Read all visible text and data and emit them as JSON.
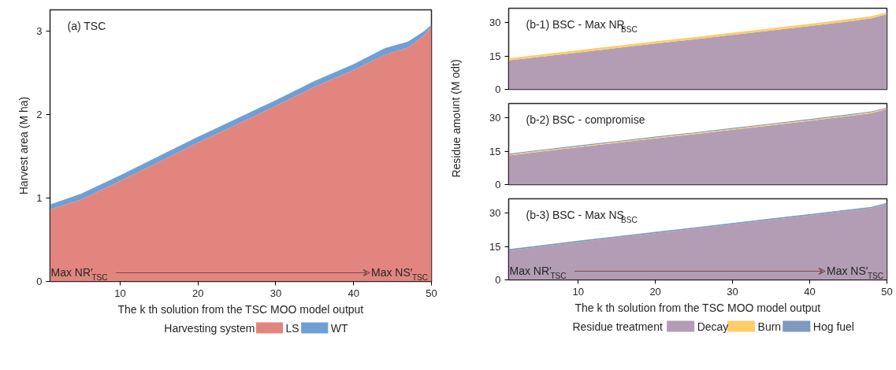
{
  "chart_data": [
    {
      "type": "area",
      "stacked": true,
      "title": "(a) TSC",
      "xlabel": "The k th solution from the TSC MOO model output",
      "ylabel": "Harvest area (M ha)",
      "legend_title": "Harvesting system",
      "legend": "bottom",
      "x": [
        1,
        5,
        10,
        15,
        20,
        25,
        30,
        35,
        40,
        44,
        47,
        49,
        50
      ],
      "series": [
        {
          "name": "LS",
          "color": "#e3857f",
          "values": [
            0.86,
            0.98,
            1.2,
            1.43,
            1.66,
            1.88,
            2.1,
            2.33,
            2.53,
            2.71,
            2.8,
            2.94,
            3.05
          ]
        },
        {
          "name": "WT",
          "color": "#6f9fd3",
          "values": [
            0.06,
            0.07,
            0.07,
            0.07,
            0.07,
            0.07,
            0.07,
            0.07,
            0.07,
            0.08,
            0.07,
            0.05,
            0.02
          ]
        }
      ],
      "xlim": [
        1,
        50
      ],
      "xticks": [
        10,
        20,
        30,
        40,
        50
      ],
      "ylim": [
        0,
        3.25
      ],
      "yticks": [
        0,
        1,
        2,
        3
      ],
      "annotations": [
        "Max NR′$_{TSC}$",
        "Max NS′$_{TSC}$"
      ]
    },
    {
      "type": "area",
      "stacked": true,
      "title": "(b-1) BSC - Max NR$_{BSC}$",
      "tick_labels": "y",
      "x": [
        1,
        5,
        10,
        15,
        20,
        25,
        30,
        35,
        40,
        45,
        48,
        50
      ],
      "series": [
        {
          "color": "#b39db5",
          "values": [
            13.0,
            14.6,
            16.6,
            18.6,
            20.6,
            22.5,
            24.5,
            26.5,
            28.5,
            30.6,
            32.0,
            33.8
          ]
        },
        {
          "color": "#fdcd68",
          "values": [
            1.0,
            1.0,
            1.0,
            1.0,
            1.0,
            1.0,
            1.0,
            1.0,
            1.0,
            1.0,
            1.0,
            0.8
          ]
        }
      ],
      "xlim": [
        1,
        50
      ],
      "ylim": [
        0,
        36.5
      ],
      "yticks": [
        0,
        15,
        30
      ]
    },
    {
      "type": "area",
      "stacked": true,
      "title": "(b-2) BSC - compromise",
      "ylabel": "Residue amount (M odt)",
      "tick_labels": "y",
      "x": [
        1,
        5,
        10,
        15,
        20,
        25,
        30,
        35,
        40,
        45,
        48,
        50
      ],
      "series": [
        {
          "color": "#b39db5",
          "values": [
            13.1,
            14.8,
            16.8,
            18.8,
            20.8,
            22.7,
            24.7,
            26.7,
            28.7,
            30.8,
            32.2,
            34.0
          ]
        },
        {
          "color": "#fdcd68",
          "values": [
            0.4,
            0.4,
            0.4,
            0.4,
            0.4,
            0.4,
            0.4,
            0.4,
            0.4,
            0.4,
            0.4,
            0.3
          ]
        },
        {
          "color": "#8099bf",
          "values": [
            0.4,
            0.4,
            0.4,
            0.4,
            0.4,
            0.4,
            0.4,
            0.4,
            0.4,
            0.4,
            0.4,
            0.3
          ]
        }
      ],
      "xlim": [
        1,
        50
      ],
      "ylim": [
        0,
        36.5
      ],
      "yticks": [
        0,
        15,
        30
      ]
    },
    {
      "type": "area",
      "stacked": true,
      "title": "(b-3) BSC - Max NS$_{BSC}$",
      "xlabel": "The k th solution from the TSC MOO model output",
      "legend_title": "Residue treatment",
      "legend": "bottom",
      "x": [
        1,
        5,
        10,
        15,
        20,
        25,
        30,
        35,
        40,
        45,
        48,
        50
      ],
      "series": [
        {
          "name": "Decay",
          "color": "#b39db5",
          "values": [
            13.2,
            14.9,
            17.0,
            19.0,
            21.0,
            23.0,
            25.0,
            27.0,
            29.0,
            31.0,
            32.3,
            34.0
          ]
        },
        {
          "name": "Burn",
          "color": "#fdcd68",
          "values": [
            null,
            null,
            null,
            null,
            null,
            null,
            null,
            null,
            null,
            null,
            null,
            null
          ]
        },
        {
          "name": "Hog fuel",
          "color": "#8099bf",
          "values": [
            0.6,
            0.6,
            0.6,
            0.6,
            0.6,
            0.6,
            0.6,
            0.6,
            0.6,
            0.6,
            0.6,
            0.6
          ]
        }
      ],
      "xlim": [
        1,
        50
      ],
      "xticks": [
        10,
        20,
        30,
        40,
        50
      ],
      "ylim": [
        0,
        36.5
      ],
      "yticks": [
        0,
        15,
        30
      ],
      "annotations": [
        "Max NR′$_{TSC}$",
        "Max NS′$_{TSC}$"
      ]
    }
  ]
}
